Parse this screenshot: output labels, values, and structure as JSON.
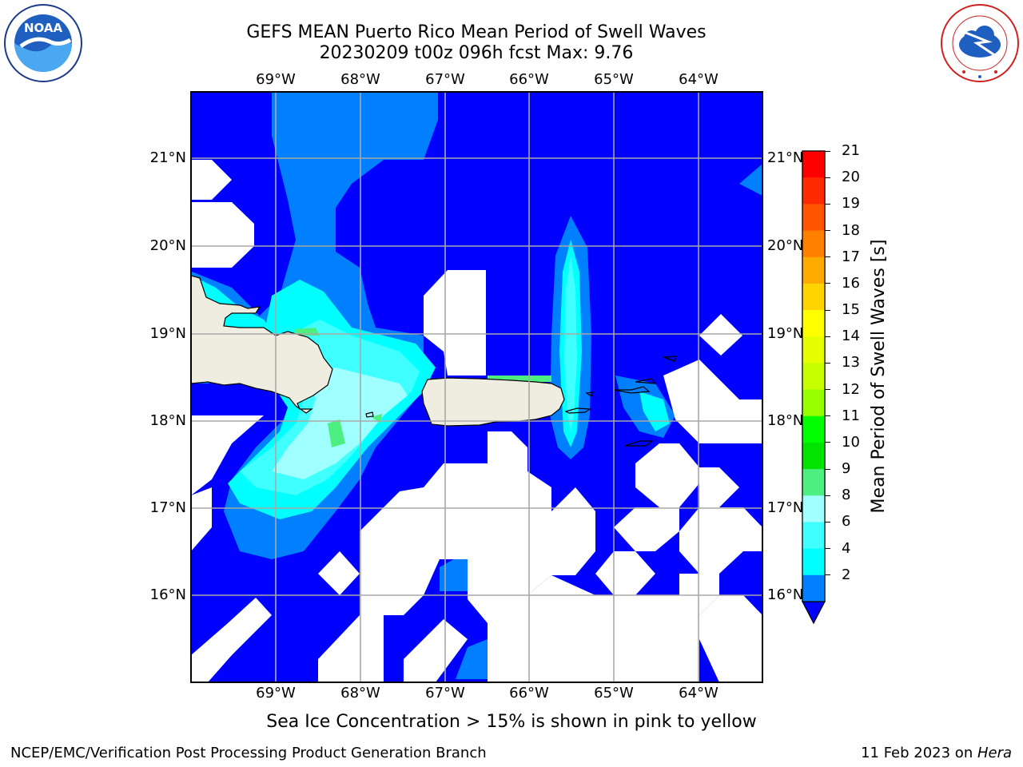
{
  "title": {
    "line1": "GEFS MEAN Puerto Rico Mean Period of Swell Waves",
    "line2": "20230209 t00z 096h fcst   Max: 9.76"
  },
  "logos": {
    "left": "NOAA",
    "left_ring": "NATIONAL OCEANIC AND ATMOSPHERIC ADMINISTRATION · U.S. DEPARTMENT OF COMMERCE",
    "right_ring": "NATIONAL WEATHER SERVICE"
  },
  "map": {
    "lon_labels": [
      "69°W",
      "68°W",
      "67°W",
      "66°W",
      "65°W",
      "64°W"
    ],
    "lat_labels": [
      "21°N",
      "20°N",
      "19°N",
      "18°N",
      "17°N",
      "16°N"
    ],
    "land_color": "#efede0",
    "ocean_color": "#0000ff"
  },
  "colorbar": {
    "label": "Mean Period of Swell Waves [s]",
    "ticks": [
      "21",
      "20",
      "19",
      "18",
      "17",
      "16",
      "15",
      "14",
      "13",
      "12",
      "11",
      "10",
      "9",
      "8",
      "6",
      "4",
      "2"
    ],
    "colors": [
      "#ff0000",
      "#ff2a00",
      "#ff5500",
      "#ff8000",
      "#ffaa00",
      "#ffd400",
      "#ffff00",
      "#e6ff00",
      "#c8ff00",
      "#96ff00",
      "#00ff00",
      "#00e400",
      "#4df080",
      "#a0ffff",
      "#40ffff",
      "#00ffff",
      "#0080ff"
    ],
    "extend_color": "#0000ff"
  },
  "caption": "Sea Ice Concentration > 15% is shown in pink to yellow",
  "footer": {
    "left": "NCEP/EMC/Verification Post Processing Product Generation Branch",
    "right_date": "11 Feb 2023 on ",
    "right_host": "Hera"
  }
}
